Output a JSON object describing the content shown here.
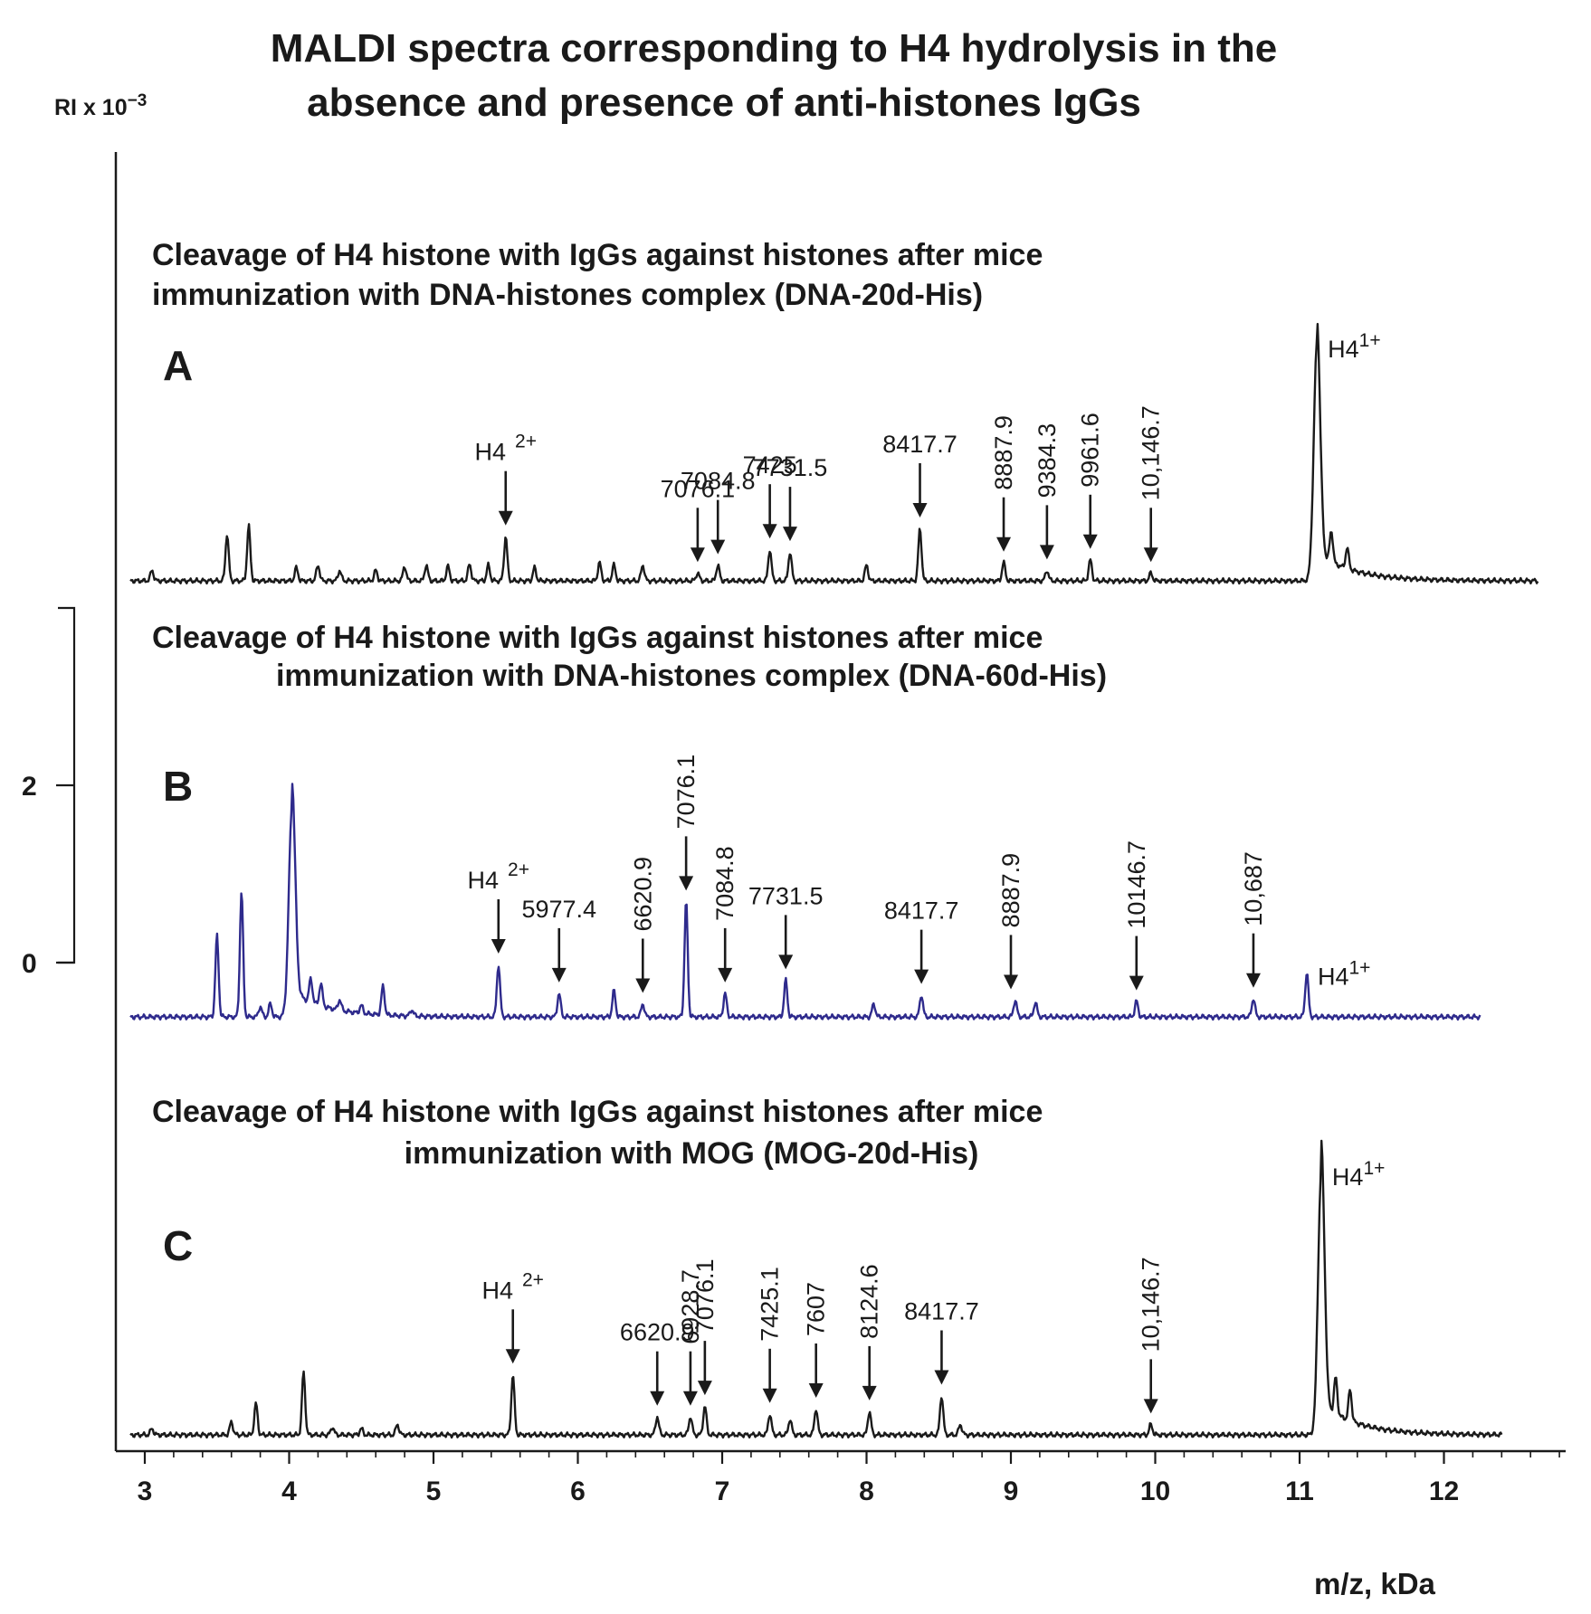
{
  "chart_data": {
    "type": "line",
    "title_line1": "MALDI spectra corresponding to H4 hydrolysis in the",
    "title_line2": "absence and presence of anti-histones  IgGs",
    "ylabel": "RI x 10",
    "ylabel_exp": "−3",
    "xlabel": "m/z, kDa",
    "xlim": [
      2.9,
      12.85
    ],
    "x_ticks": [
      3,
      4,
      5,
      6,
      7,
      8,
      9,
      10,
      11,
      12
    ],
    "y_ticks": [
      0,
      2
    ],
    "grid": false,
    "panels": [
      {
        "letter": "A",
        "caption_line1": "Cleavage of H4 histone with IgGs against histones  after mice",
        "caption_line2": "immunization with DNA-histones complex (DNA-20d-His)",
        "color": "#1a1a1a",
        "x_range": [
          2.9,
          12.65
        ],
        "peaks": [
          [
            3.05,
            0.2
          ],
          [
            3.57,
            0.9
          ],
          [
            3.72,
            1.05
          ],
          [
            4.05,
            0.25
          ],
          [
            4.2,
            0.3
          ],
          [
            4.35,
            0.2
          ],
          [
            4.6,
            0.2
          ],
          [
            4.8,
            0.28
          ],
          [
            4.95,
            0.3
          ],
          [
            5.1,
            0.28
          ],
          [
            5.25,
            0.32
          ],
          [
            5.38,
            0.3
          ],
          [
            5.5,
            0.85
          ],
          [
            5.7,
            0.25
          ],
          [
            6.15,
            0.35
          ],
          [
            6.25,
            0.3
          ],
          [
            6.45,
            0.3
          ],
          [
            6.83,
            0.15
          ],
          [
            6.97,
            0.3
          ],
          [
            7.33,
            0.6
          ],
          [
            7.47,
            0.55
          ],
          [
            8.0,
            0.3
          ],
          [
            8.37,
            1.0
          ],
          [
            8.95,
            0.35
          ],
          [
            9.25,
            0.2
          ],
          [
            9.55,
            0.4
          ],
          [
            9.97,
            0.15
          ],
          [
            11.12,
            4.5
          ],
          [
            11.22,
            0.6
          ],
          [
            11.33,
            0.4
          ]
        ],
        "labels": [
          {
            "text": "H4",
            "sup": "2+",
            "x": 5.5,
            "rotated": false
          },
          {
            "text": "7076.1",
            "x": 6.83,
            "rotated": false
          },
          {
            "text": "7084.8",
            "x": 6.97,
            "rotated": false
          },
          {
            "text": "7425",
            "x": 7.33,
            "rotated": false
          },
          {
            "text": "7731.5",
            "x": 7.47,
            "rotated": false
          },
          {
            "text": "8417.7",
            "x": 8.37,
            "rotated": false
          },
          {
            "text": "8887.9",
            "x": 8.95,
            "rotated": true
          },
          {
            "text": "9384.3",
            "x": 9.25,
            "rotated": true
          },
          {
            "text": "9961.6",
            "x": 9.55,
            "rotated": true
          },
          {
            "text": "10,146.7",
            "x": 9.97,
            "rotated": true
          },
          {
            "text": "H4",
            "sup": "1+",
            "x": 11.12,
            "rotated": false
          }
        ]
      },
      {
        "letter": "B",
        "caption_line1": "Cleavage of H4 histone with IgGs against histones  after mice",
        "caption_line2": "immunization with DNA-histones complex (DNA-60d-His)",
        "color": "#2e2a8c",
        "x_range": [
          2.9,
          12.25
        ],
        "peaks": [
          [
            3.5,
            1.55
          ],
          [
            3.67,
            2.4
          ],
          [
            3.8,
            0.2
          ],
          [
            3.87,
            0.25
          ],
          [
            4.02,
            4.0
          ],
          [
            4.15,
            0.45
          ],
          [
            4.22,
            0.42
          ],
          [
            4.35,
            0.2
          ],
          [
            4.5,
            0.15
          ],
          [
            4.65,
            0.55
          ],
          [
            4.85,
            0.12
          ],
          [
            5.45,
            1.0
          ],
          [
            5.87,
            0.45
          ],
          [
            6.25,
            0.5
          ],
          [
            6.45,
            0.25
          ],
          [
            6.75,
            2.2
          ],
          [
            7.02,
            0.45
          ],
          [
            7.44,
            0.7
          ],
          [
            8.05,
            0.25
          ],
          [
            8.38,
            0.42
          ],
          [
            9.03,
            0.32
          ],
          [
            9.17,
            0.28
          ],
          [
            9.87,
            0.3
          ],
          [
            10.68,
            0.35
          ],
          [
            11.05,
            0.85
          ]
        ],
        "labels": [
          {
            "text": "H4",
            "sup": "2+",
            "x": 5.45,
            "rotated": false
          },
          {
            "text": "5977.4",
            "x": 5.87,
            "rotated": false
          },
          {
            "text": "6620.9",
            "x": 6.45,
            "rotated": true
          },
          {
            "text": "7076.1",
            "x": 6.75,
            "rotated": true
          },
          {
            "text": "7084.8",
            "x": 7.02,
            "rotated": true
          },
          {
            "text": "7731.5",
            "x": 7.44,
            "rotated": false
          },
          {
            "text": "8417.7",
            "x": 8.38,
            "rotated": false
          },
          {
            "text": "8887.9",
            "x": 9.0,
            "rotated": true
          },
          {
            "text": "10146.7",
            "x": 9.87,
            "rotated": true
          },
          {
            "text": "10,687",
            "x": 10.68,
            "rotated": true
          },
          {
            "text": "H4",
            "sup": "1+",
            "x": 11.05,
            "rotated": false
          }
        ]
      },
      {
        "letter": "C",
        "caption_line1": "Cleavage of H4 histone with IgGs against histones  after mice",
        "caption_line2": "immunization with MOG  (MOG-20d-His)",
        "color": "#1a1a1a",
        "x_range": [
          2.9,
          12.4
        ],
        "peaks": [
          [
            3.05,
            0.12
          ],
          [
            3.6,
            0.25
          ],
          [
            3.77,
            0.6
          ],
          [
            4.1,
            1.2
          ],
          [
            4.3,
            0.15
          ],
          [
            4.5,
            0.12
          ],
          [
            4.75,
            0.2
          ],
          [
            5.55,
            1.15
          ],
          [
            6.55,
            0.35
          ],
          [
            6.78,
            0.35
          ],
          [
            6.88,
            0.55
          ],
          [
            7.33,
            0.4
          ],
          [
            7.47,
            0.3
          ],
          [
            7.65,
            0.5
          ],
          [
            8.02,
            0.45
          ],
          [
            8.52,
            0.75
          ],
          [
            8.65,
            0.2
          ],
          [
            9.97,
            0.2
          ],
          [
            11.15,
            5.0
          ],
          [
            11.25,
            0.7
          ],
          [
            11.35,
            0.6
          ]
        ],
        "labels": [
          {
            "text": "H4",
            "sup": "2+",
            "x": 5.55,
            "rotated": false
          },
          {
            "text": "6620.9",
            "x": 6.55,
            "rotated": false
          },
          {
            "text": "6928.7",
            "x": 6.78,
            "rotated": true
          },
          {
            "text": "7076.1",
            "x": 6.88,
            "rotated": true
          },
          {
            "text": "7425.1",
            "x": 7.33,
            "rotated": true
          },
          {
            "text": "7607",
            "x": 7.65,
            "rotated": true
          },
          {
            "text": "8124.6",
            "x": 8.02,
            "rotated": true
          },
          {
            "text": "8417.7",
            "x": 8.52,
            "rotated": false
          },
          {
            "text": "10,146.7",
            "x": 9.97,
            "rotated": true
          },
          {
            "text": "H4",
            "sup": "1+",
            "x": 11.15,
            "rotated": false
          }
        ]
      }
    ]
  }
}
